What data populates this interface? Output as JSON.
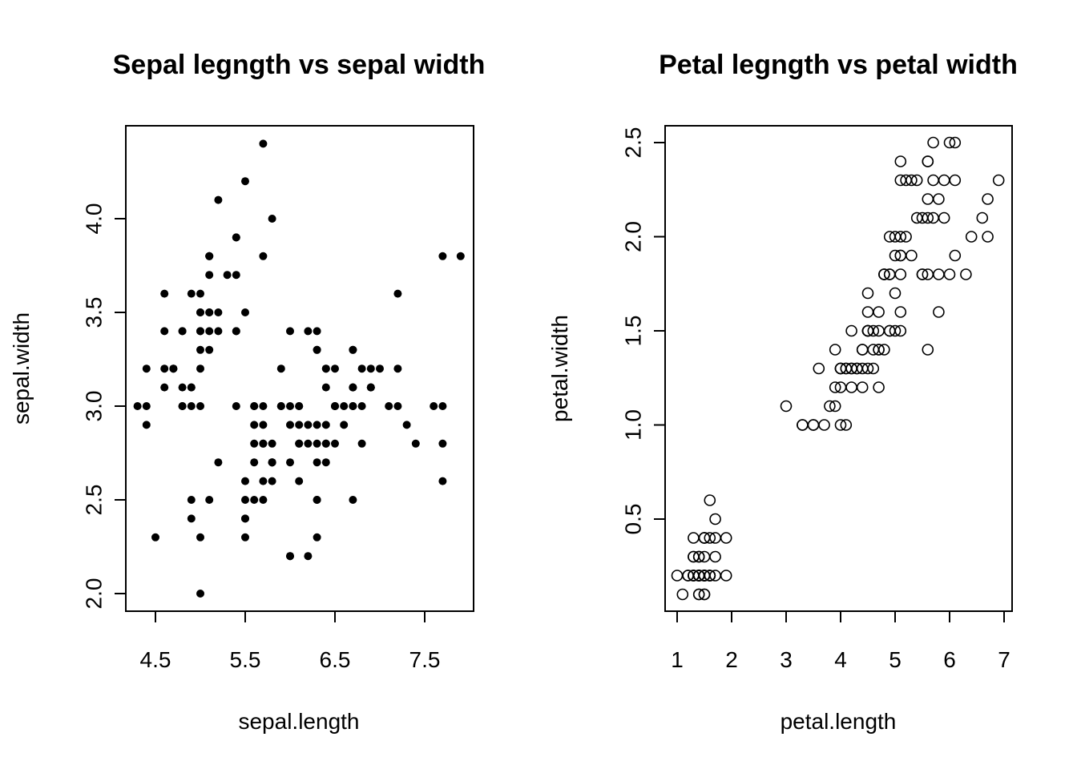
{
  "chart_data": [
    {
      "type": "scatter",
      "title": "Sepal legngth vs sepal width",
      "xlabel": "sepal.length",
      "ylabel": "sepal.width",
      "xlim": [
        4.3,
        7.9
      ],
      "ylim": [
        2.0,
        4.4
      ],
      "xticks": [
        "4.5",
        "5.5",
        "6.5",
        "7.5"
      ],
      "yticks": [
        "2.0",
        "2.5",
        "3.0",
        "3.5",
        "4.0"
      ],
      "marker": "filled-circle",
      "grid": false,
      "x": [
        5.1,
        4.9,
        4.7,
        4.6,
        5.0,
        5.4,
        4.6,
        5.0,
        4.4,
        4.9,
        5.4,
        4.8,
        4.8,
        4.3,
        5.8,
        5.7,
        5.4,
        5.1,
        5.7,
        5.1,
        5.4,
        5.1,
        4.6,
        5.1,
        4.8,
        5.0,
        5.0,
        5.2,
        5.2,
        4.7,
        4.8,
        5.4,
        5.2,
        5.5,
        4.9,
        5.0,
        5.5,
        4.9,
        4.4,
        5.1,
        5.0,
        4.5,
        4.4,
        5.0,
        5.1,
        4.8,
        5.1,
        4.6,
        5.3,
        5.0,
        7.0,
        6.4,
        6.9,
        5.5,
        6.5,
        5.7,
        6.3,
        4.9,
        6.6,
        5.2,
        5.0,
        5.9,
        6.0,
        6.1,
        5.6,
        6.7,
        5.6,
        5.8,
        6.2,
        5.6,
        5.9,
        6.1,
        6.3,
        6.1,
        6.4,
        6.6,
        6.8,
        6.7,
        6.0,
        5.7,
        5.5,
        5.5,
        5.8,
        6.0,
        5.4,
        6.0,
        6.7,
        6.3,
        5.6,
        5.5,
        5.5,
        6.1,
        5.8,
        5.0,
        5.6,
        5.7,
        5.7,
        6.2,
        5.1,
        5.7,
        6.3,
        5.8,
        7.1,
        6.3,
        6.5,
        7.6,
        4.9,
        7.3,
        6.7,
        7.2,
        6.5,
        6.4,
        6.8,
        5.7,
        5.8,
        6.4,
        6.5,
        7.7,
        7.7,
        6.0,
        6.9,
        5.6,
        7.7,
        6.3,
        6.7,
        7.2,
        6.2,
        6.1,
        6.4,
        7.2,
        7.4,
        7.9,
        6.4,
        6.3,
        6.1,
        7.7,
        6.3,
        6.4,
        6.0,
        6.9,
        6.7,
        6.9,
        5.8,
        6.8,
        6.7,
        6.7,
        6.3,
        6.5,
        6.2,
        5.9
      ],
      "y": [
        3.5,
        3.0,
        3.2,
        3.1,
        3.6,
        3.9,
        3.4,
        3.4,
        2.9,
        3.1,
        3.7,
        3.4,
        3.0,
        3.0,
        4.0,
        4.4,
        3.9,
        3.5,
        3.8,
        3.8,
        3.4,
        3.7,
        3.6,
        3.3,
        3.4,
        3.0,
        3.4,
        3.5,
        3.4,
        3.2,
        3.1,
        3.4,
        4.1,
        4.2,
        3.1,
        3.2,
        3.5,
        3.6,
        3.0,
        3.4,
        3.5,
        2.3,
        3.2,
        3.5,
        3.8,
        3.0,
        3.8,
        3.2,
        3.7,
        3.3,
        3.2,
        3.2,
        3.1,
        2.3,
        2.8,
        2.8,
        3.3,
        2.4,
        2.9,
        2.7,
        2.0,
        3.0,
        2.2,
        2.9,
        2.9,
        3.1,
        3.0,
        2.7,
        2.2,
        2.5,
        3.2,
        2.8,
        2.5,
        2.8,
        2.9,
        3.0,
        2.8,
        3.0,
        2.9,
        2.6,
        2.4,
        2.4,
        2.7,
        2.7,
        3.0,
        3.4,
        3.1,
        2.3,
        3.0,
        2.5,
        2.6,
        3.0,
        2.6,
        2.3,
        2.7,
        3.0,
        2.9,
        2.9,
        2.5,
        2.8,
        3.3,
        2.7,
        3.0,
        2.9,
        3.0,
        3.0,
        2.5,
        2.9,
        2.5,
        3.6,
        3.2,
        2.7,
        3.0,
        2.5,
        2.8,
        3.2,
        3.0,
        3.8,
        2.6,
        2.2,
        3.2,
        2.8,
        2.8,
        2.7,
        3.3,
        3.2,
        2.8,
        3.0,
        2.8,
        3.0,
        2.8,
        3.8,
        2.8,
        2.8,
        2.6,
        3.0,
        3.4,
        3.1,
        3.0,
        3.1,
        3.1,
        3.1,
        2.7,
        3.2,
        3.3,
        3.0,
        2.5,
        3.0,
        3.4,
        3.0
      ]
    },
    {
      "type": "scatter",
      "title": "Petal legngth vs petal width",
      "xlabel": "petal.length",
      "ylabel": "petal.width",
      "xlim": [
        1.0,
        6.9
      ],
      "ylim": [
        0.1,
        2.5
      ],
      "xticks": [
        "1",
        "2",
        "3",
        "4",
        "5",
        "6",
        "7"
      ],
      "yticks": [
        "0.5",
        "1.0",
        "1.5",
        "2.0",
        "2.5"
      ],
      "marker": "open-circle",
      "grid": false,
      "x": [
        1.4,
        1.4,
        1.3,
        1.5,
        1.4,
        1.7,
        1.4,
        1.5,
        1.4,
        1.5,
        1.5,
        1.6,
        1.4,
        1.1,
        1.2,
        1.5,
        1.3,
        1.4,
        1.7,
        1.5,
        1.7,
        1.5,
        1.0,
        1.7,
        1.9,
        1.6,
        1.6,
        1.5,
        1.4,
        1.6,
        1.6,
        1.5,
        1.5,
        1.4,
        1.5,
        1.2,
        1.3,
        1.4,
        1.3,
        1.5,
        1.3,
        1.3,
        1.3,
        1.6,
        1.9,
        1.4,
        1.6,
        1.4,
        1.5,
        1.4,
        4.7,
        4.5,
        4.9,
        4.0,
        4.6,
        4.5,
        4.7,
        3.3,
        4.6,
        3.9,
        3.5,
        4.2,
        4.0,
        4.7,
        3.6,
        4.4,
        4.5,
        4.1,
        4.5,
        3.9,
        4.8,
        4.0,
        4.9,
        4.7,
        4.3,
        4.4,
        4.8,
        5.0,
        4.5,
        3.5,
        3.8,
        3.7,
        3.9,
        5.1,
        4.5,
        4.5,
        4.7,
        4.4,
        4.1,
        4.0,
        4.4,
        4.6,
        4.0,
        3.3,
        4.2,
        4.2,
        4.2,
        4.3,
        3.0,
        4.1,
        6.0,
        5.1,
        5.9,
        5.6,
        5.8,
        6.6,
        4.5,
        6.3,
        5.8,
        6.1,
        5.1,
        5.3,
        5.5,
        5.0,
        5.1,
        5.3,
        5.5,
        6.7,
        6.9,
        5.0,
        5.7,
        4.9,
        6.7,
        4.9,
        5.7,
        6.0,
        4.8,
        4.9,
        5.6,
        5.8,
        6.1,
        6.4,
        5.6,
        5.1,
        5.6,
        6.1,
        5.6,
        5.5,
        4.8,
        5.4,
        5.6,
        5.1,
        5.1,
        5.9,
        5.7,
        5.2,
        5.0,
        5.2,
        5.4,
        5.1
      ],
      "y": [
        0.2,
        0.2,
        0.2,
        0.2,
        0.2,
        0.4,
        0.3,
        0.2,
        0.2,
        0.1,
        0.2,
        0.2,
        0.1,
        0.1,
        0.2,
        0.4,
        0.4,
        0.3,
        0.3,
        0.3,
        0.2,
        0.4,
        0.2,
        0.5,
        0.2,
        0.2,
        0.4,
        0.2,
        0.2,
        0.2,
        0.2,
        0.4,
        0.1,
        0.2,
        0.2,
        0.2,
        0.2,
        0.1,
        0.2,
        0.2,
        0.3,
        0.3,
        0.2,
        0.6,
        0.4,
        0.3,
        0.2,
        0.2,
        0.2,
        0.2,
        1.4,
        1.5,
        1.5,
        1.3,
        1.5,
        1.3,
        1.6,
        1.0,
        1.3,
        1.4,
        1.0,
        1.5,
        1.0,
        1.4,
        1.3,
        1.4,
        1.5,
        1.0,
        1.5,
        1.1,
        1.8,
        1.3,
        1.5,
        1.2,
        1.3,
        1.4,
        1.4,
        1.7,
        1.5,
        1.0,
        1.1,
        1.0,
        1.2,
        1.6,
        1.5,
        1.6,
        1.5,
        1.3,
        1.3,
        1.3,
        1.2,
        1.4,
        1.2,
        1.0,
        1.3,
        1.2,
        1.3,
        1.3,
        1.1,
        1.3,
        2.5,
        1.9,
        2.1,
        1.8,
        2.2,
        2.1,
        1.7,
        1.8,
        1.8,
        2.5,
        2.0,
        1.9,
        2.1,
        2.0,
        2.4,
        2.3,
        1.8,
        2.2,
        2.3,
        1.5,
        2.3,
        2.0,
        2.0,
        1.8,
        2.1,
        1.8,
        1.8,
        1.8,
        2.1,
        1.6,
        1.9,
        2.0,
        2.2,
        1.5,
        1.4,
        2.3,
        2.4,
        1.8,
        1.8,
        2.1,
        2.4,
        2.3,
        1.9,
        2.3,
        2.5,
        2.3,
        1.9,
        2.0,
        2.3,
        1.8
      ]
    }
  ]
}
